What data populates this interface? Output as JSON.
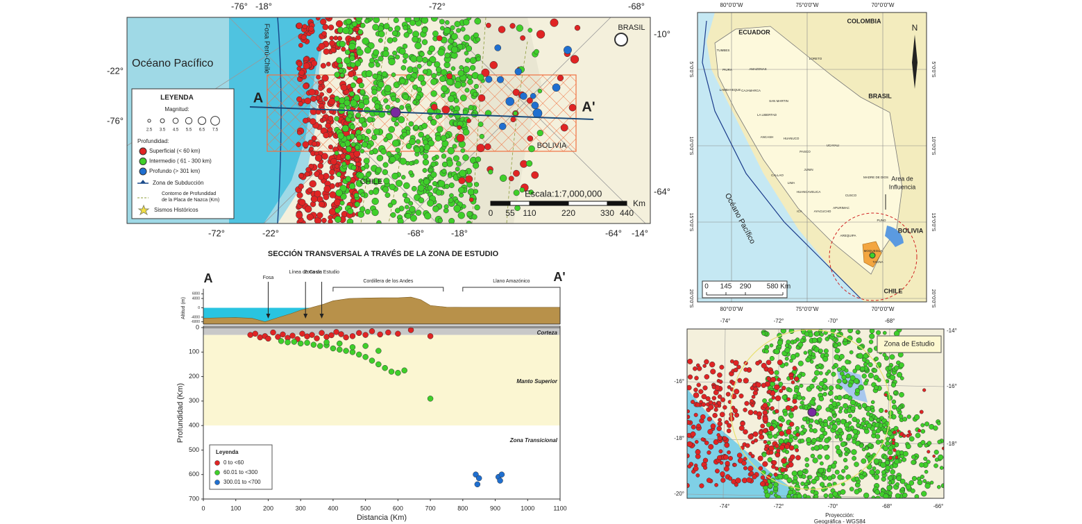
{
  "main_map": {
    "top_ticks": [
      "-76°",
      "-18°",
      "-72°",
      "-68°"
    ],
    "right_ticks": [
      "-10°",
      "-64°"
    ],
    "left_ticks": [
      "-22°",
      "-76°"
    ],
    "bottom_ticks": [
      "-72°",
      "-22°",
      "-68°",
      "-18°",
      "-64°",
      "-14°"
    ],
    "ocean": "Océano Pacífico",
    "trench": "Fosa Perú-Chile",
    "countries": [
      "BRASIL",
      "BOLIVIA",
      "CHILE"
    ],
    "section_start": "A",
    "section_end": "A'",
    "scale_title": "Escala:1:7,000,000",
    "scale_labels": [
      "0",
      "55",
      "110",
      "220",
      "330",
      "440"
    ],
    "scale_unit": "Km",
    "legend": {
      "title": "LEYENDA",
      "magnitude_title": "Magnitud:",
      "magnitudes": [
        2.5,
        3.5,
        4.5,
        5.5,
        6.5,
        7.5
      ],
      "depth_title": "Profundidad:",
      "depth_classes": [
        {
          "label": "Superficial (< 60 km)",
          "color": "#e02424"
        },
        {
          "label": "Intermedio ( 61 - 300  km)",
          "color": "#3fcf2a"
        },
        {
          "label": "Profundo (> 301 km)",
          "color": "#1f6fd0"
        }
      ],
      "subduction": "Zona de Subducción",
      "contour": [
        "Contorno de Profundidad",
        "de la Placa de Nazca (Km)"
      ],
      "historic": "Sismos Históricos"
    }
  },
  "section_title": "SECCIÓN TRANSVERSAL A TRAVÉS DE LA ZONA DE ESTUDIO",
  "chart_data": [
    {
      "type": "area",
      "y_label": "Altitud (m)",
      "section_start": "A",
      "section_end": "A'",
      "x": [
        0,
        50,
        100,
        150,
        190,
        230,
        270,
        300,
        330,
        370,
        400,
        450,
        500,
        550,
        600,
        640,
        670,
        700,
        750,
        800,
        900,
        1000,
        1100
      ],
      "values": [
        -4500,
        -4300,
        -4200,
        -4500,
        -6000,
        -4200,
        -2500,
        -1000,
        0,
        1500,
        3000,
        4000,
        4200,
        4300,
        4300,
        4600,
        3500,
        1000,
        300,
        200,
        200,
        200,
        200
      ],
      "color": "#b8914a",
      "sea_color": "#29c4e0",
      "xlim": [
        0,
        1100
      ],
      "ylim": [
        -7000,
        7000
      ],
      "yticks": [
        6000,
        4000,
        0,
        -4000,
        -6000
      ],
      "annotations": [
        {
          "text": "Fosa",
          "x": 200
        },
        {
          "text": "Línea de Costa",
          "x": 315
        },
        {
          "text": "Zona de Estudio",
          "x": 365
        }
      ],
      "ranges": [
        {
          "text": "Cordillera de los Andes",
          "from": 400,
          "to": 740
        },
        {
          "text": "Llano Amazónico",
          "from": 800,
          "to": 1100
        }
      ]
    },
    {
      "type": "scatter",
      "x_label": "Distancia (Km)",
      "y_label": "Profundidad (Km)",
      "xlim": [
        0,
        1100
      ],
      "xticks": [
        0,
        100,
        200,
        300,
        400,
        500,
        600,
        700,
        800,
        900,
        1000,
        1100
      ],
      "ylim": [
        0,
        700
      ],
      "yticks": [
        0,
        100,
        200,
        300,
        400,
        500,
        600,
        700
      ],
      "y_inverted": true,
      "zones": [
        {
          "label": "Corteza",
          "from": 0,
          "to": 30,
          "color": "#c8c8c8"
        },
        {
          "label": "Manto Superior",
          "from": 30,
          "to": 400,
          "color": "#fbf6d2"
        },
        {
          "label": "Zona Transicional",
          "from": 400,
          "to": 700,
          "color": "#ffffff"
        }
      ],
      "legend_title": "Leyenda",
      "series": [
        {
          "name": "0 to <60",
          "color": "#e02424",
          "x": [
            145,
            160,
            175,
            190,
            200,
            215,
            230,
            245,
            260,
            275,
            290,
            305,
            320,
            335,
            350,
            365,
            380,
            395,
            410,
            425,
            440,
            460,
            480,
            500,
            520,
            545,
            570,
            600,
            640,
            700
          ],
          "values": [
            30,
            25,
            40,
            35,
            45,
            20,
            38,
            28,
            42,
            33,
            47,
            25,
            36,
            30,
            44,
            22,
            38,
            31,
            18,
            27,
            40,
            35,
            22,
            30,
            15,
            28,
            20,
            25,
            10,
            35
          ]
        },
        {
          "name": "60.01 to <300",
          "color": "#3fcf2a",
          "x": [
            240,
            260,
            280,
            300,
            320,
            340,
            360,
            380,
            400,
            420,
            440,
            460,
            480,
            500,
            520,
            540,
            560,
            580,
            600,
            620,
            380,
            420,
            460,
            500,
            540,
            700
          ],
          "values": [
            55,
            60,
            58,
            65,
            62,
            70,
            75,
            72,
            85,
            90,
            95,
            100,
            110,
            120,
            135,
            150,
            165,
            180,
            185,
            175,
            60,
            65,
            80,
            75,
            95,
            290
          ]
        },
        {
          "name": "300.01 to <700",
          "color": "#1f6fd0",
          "x": [
            840,
            845,
            850,
            910,
            915,
            920
          ],
          "values": [
            600,
            640,
            615,
            610,
            625,
            600
          ]
        }
      ]
    }
  ],
  "peru_map": {
    "top_ticks": [
      "80°0'0\"W",
      "75°0'0\"W",
      "70°0'0\"W"
    ],
    "bottom_ticks": [
      "80°0'0\"W",
      "75°0'0\"W",
      "70°0'0\"W"
    ],
    "left_ticks": [
      "5°0'0\"S",
      "10°0'0\"S",
      "15°0'0\"S",
      "20°0'0\"S"
    ],
    "right_ticks": [
      "5°0'0\"S",
      "10°0'0\"S",
      "15°0'0\"S",
      "20°0'0\"S"
    ],
    "countries": [
      "ECUADOR",
      "COLOMBIA",
      "BRASIL",
      "BOLIVIA",
      "CHILE"
    ],
    "ocean": "Océano Pacífico",
    "influence": [
      "Area de",
      "Influencia"
    ],
    "north": "N",
    "scale_labels": [
      "0",
      "145",
      "290",
      "580 Km"
    ],
    "regions": [
      "TUMBES",
      "PIURA",
      "LAMBAYEQUE",
      "CAJAMARCA",
      "AMAZONAS",
      "LORETO",
      "SAN MARTIN",
      "LA LIBERTAD",
      "ANCASH",
      "HUANUCO",
      "PASCO",
      "UCAYALI",
      "JUNIN",
      "LIMA",
      "CALLAO",
      "HUANCAVELICA",
      "ICA",
      "AYACUCHO",
      "APURIMAC",
      "CUSCO",
      "MADRE DE DIOS",
      "PUNO",
      "AREQUIPA",
      "MOQUEGUA",
      "TACNA"
    ]
  },
  "study_map": {
    "top_ticks": [
      "-74°",
      "-72°",
      "-70°",
      "-68°"
    ],
    "bottom_ticks": [
      "-74°",
      "-72°",
      "-70°",
      "-68°",
      "-66°"
    ],
    "left_ticks": [
      "-16°",
      "-18°",
      "-20°"
    ],
    "right_ticks": [
      "-14°",
      "-16°",
      "-18°"
    ],
    "label": "Zona de Estudio",
    "projection": [
      "Proyección:",
      "Geográfica - WGS84"
    ]
  }
}
